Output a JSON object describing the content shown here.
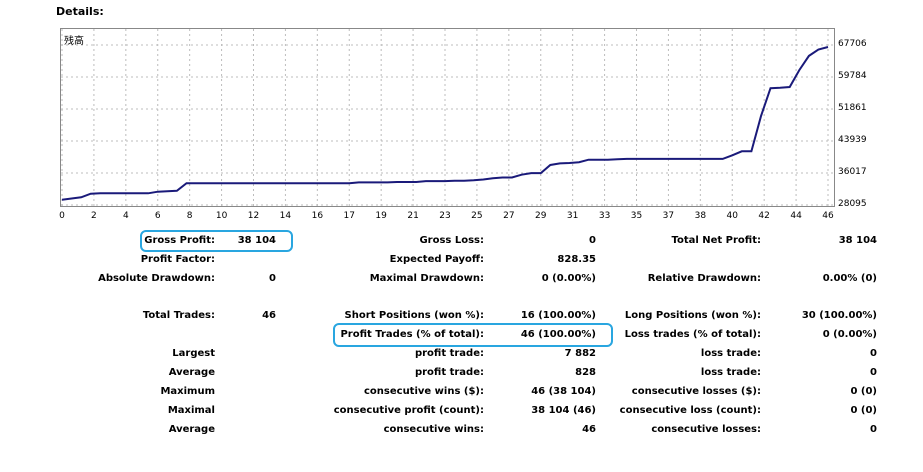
{
  "details_title": "Details:",
  "chart_corner_label": "残高",
  "colors": {
    "line": "#1a1a7a",
    "grid": "#bcbcbc",
    "highlight": "#29a6e0"
  },
  "chart_data": {
    "type": "line",
    "title": "",
    "xlabel": "",
    "ylabel": "",
    "x_ticks": [
      "0",
      "2",
      "4",
      "6",
      "8",
      "10",
      "12",
      "14",
      "16",
      "17",
      "19",
      "21",
      "23",
      "25",
      "27",
      "29",
      "31",
      "33",
      "35",
      "37",
      "38",
      "40",
      "42",
      "44",
      "46"
    ],
    "y_ticks": [
      "67706",
      "59784",
      "51861",
      "43939",
      "36017",
      "28095"
    ],
    "ylim": [
      28095,
      67706
    ],
    "grid": true,
    "series": [
      {
        "values": [
          29400,
          29700,
          30000,
          30900,
          31000,
          31000,
          31000,
          31000,
          31000,
          31000,
          31400,
          31500,
          31600,
          33500,
          33500,
          33500,
          33500,
          33500,
          33500,
          33500,
          33500,
          33500,
          33500,
          33500,
          33500,
          33500,
          33500,
          33500,
          33500,
          33500,
          33500,
          33700,
          33700,
          33700,
          33700,
          33800,
          33800,
          33800,
          34000,
          34000,
          34000,
          34100,
          34100,
          34200,
          34400,
          34700,
          34900,
          34900,
          35600,
          36000,
          36000,
          38000,
          38400,
          38500,
          38700,
          39300,
          39300,
          39300,
          39400,
          39500,
          39500,
          39500,
          39500,
          39500,
          39500,
          39500,
          39500,
          39500,
          39500,
          39500,
          40400,
          41400,
          41400,
          50100,
          57000,
          57100,
          57300,
          61500,
          65000,
          66600,
          67200
        ]
      }
    ]
  },
  "stats": {
    "row1": {
      "l1": "Gross Profit:",
      "v1": "38 104",
      "l2": "Gross Loss:",
      "v2": "0",
      "l3": "Total Net Profit:",
      "v3": "38 104"
    },
    "row2": {
      "l1": "Profit Factor:",
      "v1": "",
      "l2": "Expected Payoff:",
      "v2": "828.35",
      "l3": "",
      "v3": ""
    },
    "row3": {
      "l1": "Absolute Drawdown:",
      "v1": "0",
      "l2": "Maximal Drawdown:",
      "v2": "0 (0.00%)",
      "l3": "Relative Drawdown:",
      "v3": "0.00% (0)"
    },
    "row4": {
      "l1": "Total Trades:",
      "v1": "46",
      "l2": "Short Positions (won %):",
      "v2": "16 (100.00%)",
      "l3": "Long Positions (won %):",
      "v3": "30 (100.00%)"
    },
    "row5": {
      "l1": "",
      "v1": "",
      "l2": "Profit Trades (% of total):",
      "v2": "46 (100.00%)",
      "l3": "Loss trades (% of total):",
      "v3": "0 (0.00%)"
    },
    "row6": {
      "l1": "Largest",
      "v1": "",
      "l2": "profit trade:",
      "v2": "7 882",
      "l3": "loss trade:",
      "v3": "0"
    },
    "row7": {
      "l1": "Average",
      "v1": "",
      "l2": "profit trade:",
      "v2": "828",
      "l3": "loss trade:",
      "v3": "0"
    },
    "row8": {
      "l1": "Maximum",
      "v1": "",
      "l2": "consecutive wins ($):",
      "v2": "46 (38 104)",
      "l3": "consecutive losses ($):",
      "v3": "0 (0)"
    },
    "row9": {
      "l1": "Maximal",
      "v1": "",
      "l2": "consecutive profit (count):",
      "v2": "38 104 (46)",
      "l3": "consecutive loss (count):",
      "v3": "0 (0)"
    },
    "row10": {
      "l1": "Average",
      "v1": "",
      "l2": "consecutive wins:",
      "v2": "46",
      "l3": "consecutive losses:",
      "v3": "0"
    }
  }
}
